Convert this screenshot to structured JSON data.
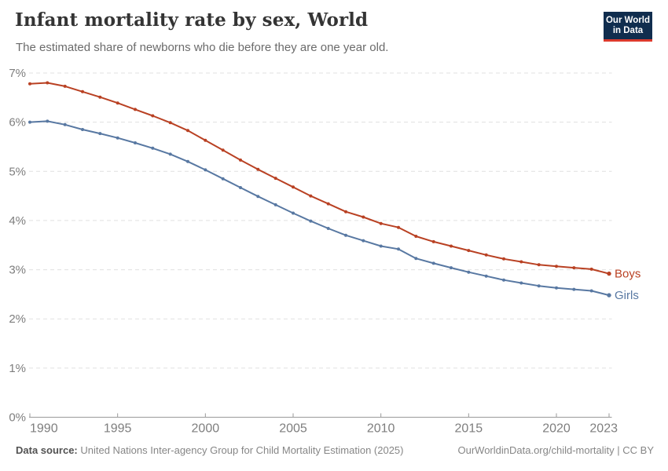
{
  "header": {
    "title": "Infant mortality rate by sex, World",
    "subtitle": "The estimated share of newborns who die before they are one year old.",
    "logo": {
      "line1": "Our World",
      "line2": "in Data",
      "bg_color": "#102d4e",
      "accent_color": "#dc3a2d"
    }
  },
  "chart_data": {
    "type": "line",
    "title": "Infant mortality rate by sex, World",
    "x": [
      1990,
      1991,
      1992,
      1993,
      1994,
      1995,
      1996,
      1997,
      1998,
      1999,
      2000,
      2001,
      2002,
      2003,
      2004,
      2005,
      2006,
      2007,
      2008,
      2009,
      2010,
      2011,
      2012,
      2013,
      2014,
      2015,
      2016,
      2017,
      2018,
      2019,
      2020,
      2021,
      2022,
      2023
    ],
    "series": [
      {
        "name": "Boys",
        "color": "#b94123",
        "values": [
          6.78,
          6.8,
          6.73,
          6.62,
          6.51,
          6.39,
          6.26,
          6.13,
          5.99,
          5.83,
          5.63,
          5.43,
          5.23,
          5.04,
          4.86,
          4.68,
          4.5,
          4.34,
          4.18,
          4.07,
          3.94,
          3.86,
          3.68,
          3.57,
          3.48,
          3.39,
          3.3,
          3.22,
          3.16,
          3.1,
          3.07,
          3.04,
          3.01,
          2.92
        ]
      },
      {
        "name": "Girls",
        "color": "#5878a2",
        "values": [
          6.0,
          6.02,
          5.95,
          5.85,
          5.77,
          5.68,
          5.58,
          5.47,
          5.35,
          5.2,
          5.03,
          4.85,
          4.67,
          4.49,
          4.32,
          4.15,
          3.99,
          3.84,
          3.7,
          3.59,
          3.48,
          3.42,
          3.23,
          3.13,
          3.04,
          2.95,
          2.87,
          2.79,
          2.73,
          2.67,
          2.63,
          2.6,
          2.57,
          2.48
        ]
      }
    ],
    "xlabel": "",
    "ylabel": "",
    "xlim": [
      1990,
      2023
    ],
    "ylim": [
      0,
      7
    ],
    "x_ticks": [
      1990,
      1995,
      2000,
      2005,
      2010,
      2015,
      2020,
      2023
    ],
    "y_ticks": [
      0,
      1,
      2,
      3,
      4,
      5,
      6,
      7
    ],
    "y_tick_suffix": "%",
    "grid": "horizontal-dashed",
    "legend_position": "line-end-labels",
    "axis_color": "#9a9a9a",
    "grid_color": "#e0e0e0",
    "tick_label_color": "#7e7e7e"
  },
  "footer": {
    "datasource_label": "Data source:",
    "datasource_text": " United Nations Inter-agency Group for Child Mortality Estimation (2025)",
    "link": "OurWorldinData.org/child-mortality | CC BY"
  }
}
